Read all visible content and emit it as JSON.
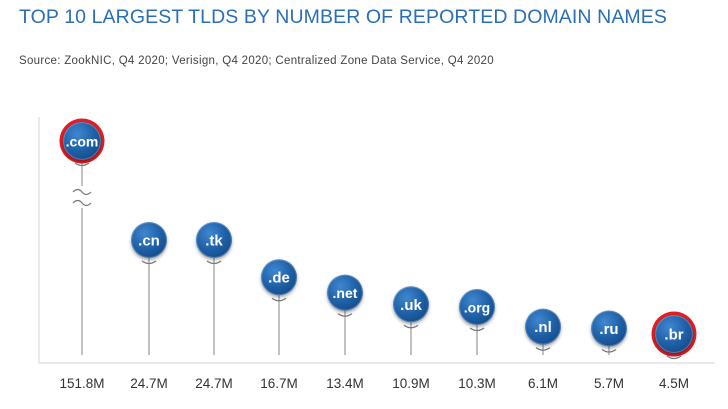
{
  "header": {
    "title": "TOP 10 LARGEST TLDS BY NUMBER OF REPORTED DOMAIN NAMES",
    "source": "Source: ZookNIC, Q4 2020; Verisign, Q4 2020; Centralized Zone Data Service, Q4 2020"
  },
  "colors": {
    "title": "#2a6fb6",
    "marker_fill": "#1f5fa6",
    "highlight_ring": "#e01e24",
    "stem": "#9a9a9a",
    "axis": "#d4d4d4",
    "tick_label": "#333333"
  },
  "chart_data": {
    "type": "scatter",
    "categories": [
      ".com",
      ".cn",
      ".tk",
      ".de",
      ".net",
      ".uk",
      ".org",
      ".nl",
      ".ru",
      ".br"
    ],
    "values": [
      151.8,
      24.7,
      24.7,
      16.7,
      13.4,
      10.9,
      10.3,
      6.1,
      5.7,
      4.5
    ],
    "value_labels": [
      "151.8M",
      "24.7M",
      "24.7M",
      "16.7M",
      "13.4M",
      "10.9M",
      "10.3M",
      "6.1M",
      "5.7M",
      "4.5M"
    ],
    "highlighted": [
      ".com",
      ".br"
    ],
    "axis_break": true,
    "unit": "M",
    "title": "TOP 10 LARGEST TLDS BY NUMBER OF REPORTED DOMAIN NAMES",
    "xlabel": "",
    "ylabel": ""
  }
}
